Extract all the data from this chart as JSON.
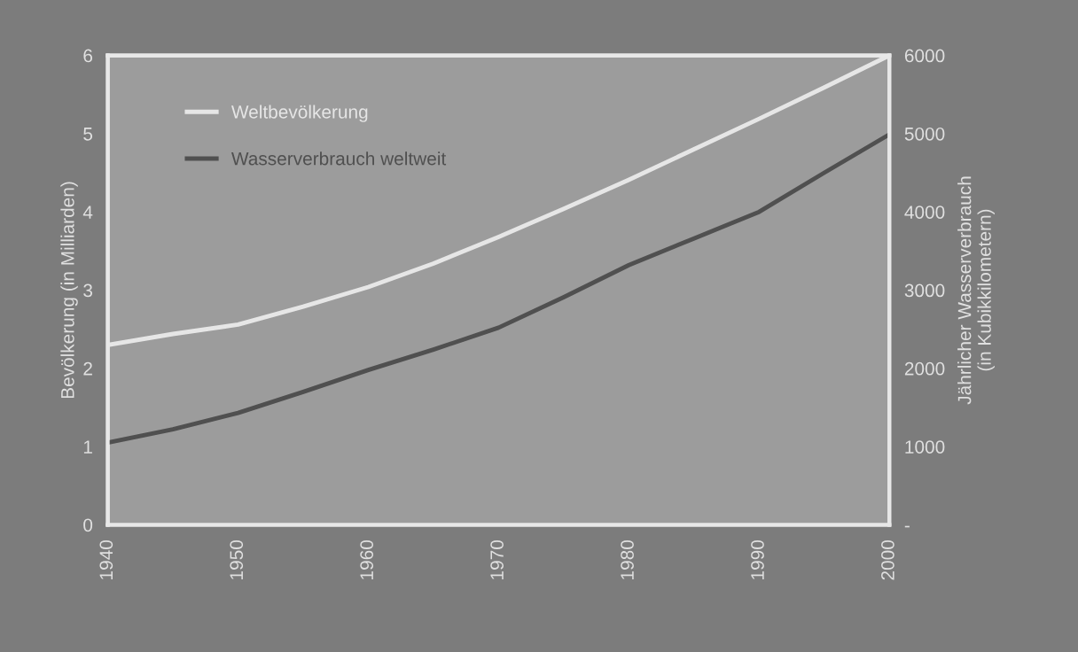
{
  "chart_data": {
    "type": "line",
    "xlabel": null,
    "ylabel": "Bevölkerung (in Milliarden)",
    "y2label": "Jährlicher Wasserverbrauch\n(in Kubikkilometern)",
    "x": [
      1940,
      1945,
      1950,
      1955,
      1960,
      1965,
      1970,
      1975,
      1980,
      1985,
      1990,
      1995,
      2000
    ],
    "series": [
      {
        "name": "Weltbevölkerung",
        "color": "#e6e6e6",
        "values": [
          2.3,
          2.44,
          2.56,
          2.79,
          3.04,
          3.34,
          3.68,
          4.04,
          4.41,
          4.8,
          5.19,
          5.59,
          6.0
        ]
      },
      {
        "name": "Wasserverbrauch weltweit",
        "color": "#505050",
        "axis": "y2",
        "values": [
          1050,
          1220,
          1430,
          1700,
          1980,
          2240,
          2520,
          2910,
          3320,
          3660,
          4000,
          4500,
          4990
        ]
      }
    ],
    "xlim": [
      1940,
      2000
    ],
    "xticks": [
      1940,
      1950,
      1960,
      1970,
      1980,
      1990,
      2000
    ],
    "ylim": [
      0,
      6
    ],
    "yticks": [
      0,
      1,
      2,
      3,
      4,
      5,
      6
    ],
    "y2lim": [
      0,
      6000
    ],
    "y2ticks": [
      {
        "value": 0,
        "label": "-"
      },
      1000,
      2000,
      3000,
      4000,
      5000,
      6000
    ],
    "legend": "top left",
    "marker": "none",
    "line_style": "solid",
    "grid": false
  }
}
